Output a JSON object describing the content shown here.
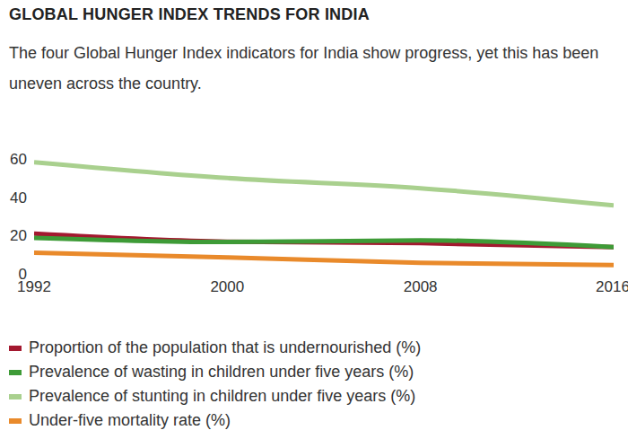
{
  "chart_data": {
    "type": "line",
    "title": "GLOBAL HUNGER INDEX TRENDS FOR INDIA",
    "subtitle": "The four Global Hunger Index indicators for India show progress, yet this has been uneven across the country.",
    "x": [
      1992,
      2000,
      2008,
      2016
    ],
    "xlim": [
      1992,
      2016
    ],
    "xticks": [
      1992,
      2000,
      2008,
      2016
    ],
    "ylim": [
      0,
      60
    ],
    "yticks": [
      0,
      20,
      40,
      60
    ],
    "grid": false,
    "series": [
      {
        "name": "Proportion of the population that is undernourished (%)",
        "color": "#a3182f",
        "values": [
          21,
          16.8,
          16,
          14
        ]
      },
      {
        "name": "Prevalence of wasting in children under five years (%)",
        "color": "#3e9b37",
        "values": [
          18.8,
          16.6,
          17.5,
          14
        ]
      },
      {
        "name": "Prevalence of stunting in children under five years (%)",
        "color": "#a9d08e",
        "values": [
          58.3,
          50,
          44.7,
          35.7
        ]
      },
      {
        "name": "Under-five mortality rate (%)",
        "color": "#e98a2b",
        "values": [
          11,
          8.6,
          5.7,
          4.6
        ]
      }
    ]
  }
}
